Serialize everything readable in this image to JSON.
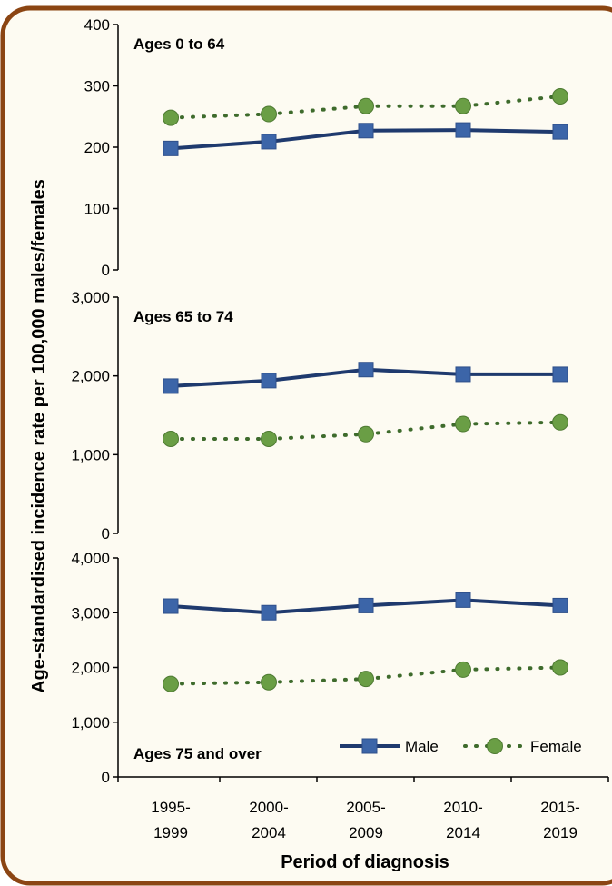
{
  "chart_data": {
    "type": "line",
    "ylabel": "Age-standardised incidence rate per 100,000 males/females",
    "xlabel": "Period of diagnosis",
    "categories": [
      [
        "1995-",
        "1999"
      ],
      [
        "2000-",
        "2004"
      ],
      [
        "2005-",
        "2009"
      ],
      [
        "2010-",
        "2014"
      ],
      [
        "2015-",
        "2019"
      ]
    ],
    "legend": {
      "placement": "bottom-right",
      "entries": [
        {
          "name": "Male",
          "color": "#1F3A6E",
          "marker": "square",
          "style": "solid"
        },
        {
          "name": "Female",
          "color": "#5B8A3A",
          "marker": "circle",
          "style": "dotted"
        }
      ]
    },
    "colors": {
      "male_line": "#1F3A6E",
      "male_marker": "#3C65A8",
      "female_line": "#3E6B2C",
      "female_marker": "#6A9E45",
      "border": "#8B4513",
      "background": "#FDFBF2"
    },
    "panels": [
      {
        "title": "Ages 0 to 64",
        "ylim": [
          0,
          400
        ],
        "yticks": [
          0,
          100,
          200,
          300,
          400
        ],
        "yticklabels": [
          "0",
          "100",
          "200",
          "300",
          "400"
        ],
        "title_position": "top",
        "series": [
          {
            "name": "Male",
            "values": [
              198,
              209,
              227,
              228,
              225
            ]
          },
          {
            "name": "Female",
            "values": [
              248,
              254,
              267,
              267,
              283
            ]
          }
        ]
      },
      {
        "title": "Ages 65 to 74",
        "ylim": [
          0,
          3000
        ],
        "yticks": [
          0,
          1000,
          2000,
          3000
        ],
        "yticklabels": [
          "0",
          "1,000",
          "2,000",
          "3,000"
        ],
        "title_position": "top",
        "series": [
          {
            "name": "Male",
            "values": [
              1870,
              1940,
              2080,
              2020,
              2020
            ]
          },
          {
            "name": "Female",
            "values": [
              1200,
              1200,
              1260,
              1390,
              1410
            ]
          }
        ]
      },
      {
        "title": "Ages 75 and over",
        "ylim": [
          0,
          4000
        ],
        "yticks": [
          0,
          1000,
          2000,
          3000,
          4000
        ],
        "yticklabels": [
          "0",
          "1,000",
          "2,000",
          "3,000",
          "4,000"
        ],
        "title_position": "bottom",
        "series": [
          {
            "name": "Male",
            "values": [
              3120,
              3000,
              3130,
              3230,
              3130
            ]
          },
          {
            "name": "Female",
            "values": [
              1700,
              1730,
              1790,
              1960,
              2000
            ]
          }
        ]
      }
    ]
  }
}
